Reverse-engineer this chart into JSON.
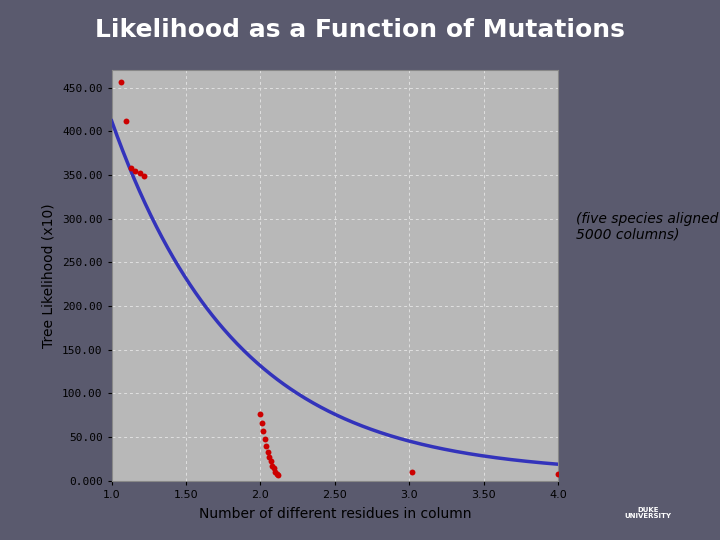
{
  "title": "Likelihood as a Function of Mutations",
  "ylabel": "Tree Likelihood (x10)",
  "xlabel": "Number of different residues in column",
  "annotation": "(five species aligned over\n5000 columns)",
  "title_bg_color": "#2222dd",
  "title_text_color": "#ffffff",
  "fig_bg_color": "#5a5a6e",
  "plot_bg_color": "#b8b8b8",
  "curve_color": "#3333bb",
  "scatter_color": "#cc0000",
  "xlim": [
    1.0,
    4.0
  ],
  "ylim": [
    0,
    470
  ],
  "yticks": [
    0,
    50,
    100,
    150,
    200,
    250,
    300,
    350,
    400,
    450
  ],
  "ytick_labels": [
    "0.000",
    "50.00",
    "100.00",
    "150.00",
    "200.00",
    "250.00",
    "300.00",
    "350.00",
    "400.00",
    "450.00"
  ],
  "xticks": [
    1.0,
    1.5,
    2.0,
    2.5,
    3.0,
    3.5,
    4.0
  ],
  "xtick_labels": [
    "1.0",
    "1.50",
    "2.0",
    "2.50",
    "3.0",
    "3.50",
    "4.0"
  ],
  "scatter_x": [
    1.06,
    1.1,
    1.13,
    1.16,
    1.19,
    1.22,
    2.0,
    2.01,
    2.02,
    2.03,
    2.04,
    2.05,
    2.06,
    2.07,
    2.08,
    2.09,
    2.1,
    2.11,
    2.12,
    3.02,
    4.0
  ],
  "scatter_y": [
    457,
    412,
    358,
    355,
    352,
    349,
    76,
    66,
    57,
    48,
    40,
    33,
    27,
    22,
    17,
    14,
    10,
    8,
    6,
    10,
    8
  ]
}
